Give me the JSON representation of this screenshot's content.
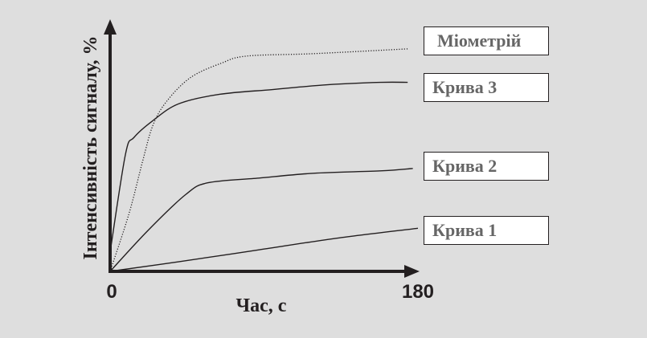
{
  "chart_data": {
    "type": "line",
    "title": "",
    "xlabel": "Час, с",
    "ylabel": "Інтенсивність сигналу, %",
    "xlim": [
      0,
      180
    ],
    "ylim": [
      0,
      100
    ],
    "x_ticks": [
      "0",
      "180"
    ],
    "grid": false,
    "legend_placement": "right",
    "series": [
      {
        "name": "Міометрій",
        "style": "dotted",
        "color": "#231f20",
        "x": [
          0,
          11,
          19,
          25,
          33,
          47,
          65,
          80,
          119,
          174
        ],
        "y": [
          0,
          24,
          46,
          61,
          71,
          81,
          87,
          90,
          91,
          93
        ]
      },
      {
        "name": "Крива 3",
        "style": "solid",
        "color": "#231f20",
        "x": [
          0,
          9,
          14,
          25,
          40,
          64,
          95,
          127,
          158,
          174
        ],
        "y": [
          8,
          49,
          56,
          63,
          70,
          74,
          76,
          78,
          79,
          79
        ]
      },
      {
        "name": "Крива 2",
        "style": "solid",
        "color": "#231f20",
        "x": [
          0,
          22,
          44,
          57,
          87,
          119,
          158,
          177
        ],
        "y": [
          0,
          17,
          32,
          37,
          39,
          41,
          42,
          43
        ]
      },
      {
        "name": "Крива 1",
        "style": "solid",
        "color": "#231f20",
        "x": [
          0,
          40,
          87,
          134,
          180
        ],
        "y": [
          0,
          4,
          9,
          14,
          18
        ]
      }
    ]
  },
  "colors": {
    "background": "#dedede",
    "axis": "#231f20",
    "legend_text": "#666666"
  }
}
